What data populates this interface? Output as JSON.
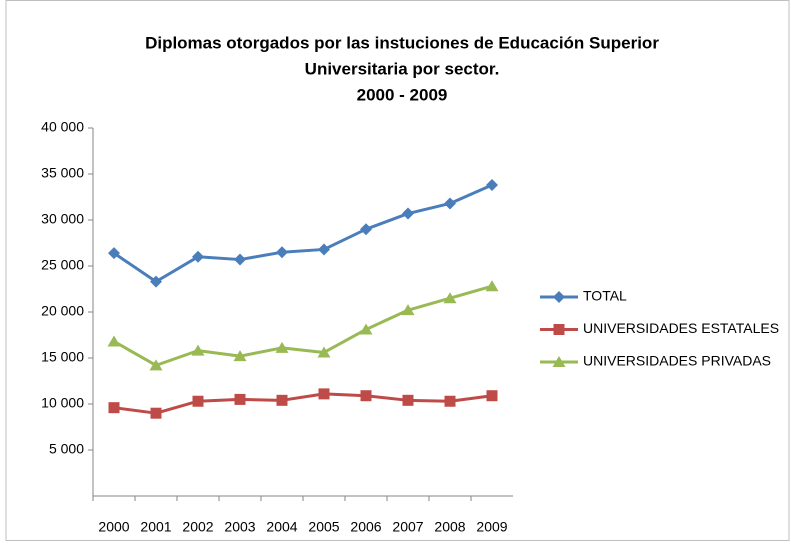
{
  "chart_data": {
    "type": "line",
    "title": [
      "Diplomas otorgados por las instuciones de Educación Superior",
      "Universitaria por sector.",
      "2000 - 2009"
    ],
    "categories": [
      "2000",
      "2001",
      "2002",
      "2003",
      "2004",
      "2005",
      "2006",
      "2007",
      "2008",
      "2009"
    ],
    "series": [
      {
        "name": "TOTAL",
        "color": "#4a7ebb",
        "marker": "diamond",
        "values": [
          26400,
          23300,
          26000,
          25700,
          26500,
          26800,
          29000,
          30700,
          31800,
          33800
        ]
      },
      {
        "name": "UNIVERSIDADES ESTATALES",
        "color": "#be4b48",
        "marker": "square",
        "values": [
          9600,
          9000,
          10300,
          10500,
          10400,
          11100,
          10900,
          10400,
          10300,
          10900
        ]
      },
      {
        "name": "UNIVERSIDADES PRIVADAS",
        "color": "#98b954",
        "marker": "triangle",
        "values": [
          16800,
          14200,
          15800,
          15200,
          16100,
          15600,
          18100,
          20200,
          21500,
          22800
        ]
      }
    ],
    "ylim": [
      0,
      40000
    ],
    "yticks": [
      {
        "value": 5000,
        "label": "5 000"
      },
      {
        "value": 10000,
        "label": "10 000"
      },
      {
        "value": 15000,
        "label": "15 000"
      },
      {
        "value": 20000,
        "label": "20 000"
      },
      {
        "value": 25000,
        "label": "25 000"
      },
      {
        "value": 30000,
        "label": "30 000"
      },
      {
        "value": 35000,
        "label": "35 000"
      },
      {
        "value": 40000,
        "label": "40 000"
      }
    ],
    "grid": false,
    "legend": "right"
  }
}
